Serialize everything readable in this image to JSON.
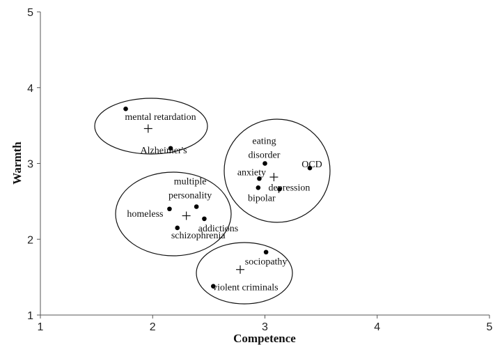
{
  "chart_data": {
    "type": "scatter",
    "xlabel": "Competence",
    "ylabel": "Warmth",
    "xlim": [
      1,
      5
    ],
    "ylim": [
      1,
      5
    ],
    "xticks": [
      "1",
      "2",
      "3",
      "4",
      "5"
    ],
    "yticks": [
      "1",
      "2",
      "3",
      "4",
      "5"
    ],
    "grid": false,
    "points": [
      {
        "label": "mental retardation",
        "x": 1.76,
        "y": 3.72
      },
      {
        "label": "Alzheimer's",
        "x": 2.16,
        "y": 3.2
      },
      {
        "label": "eating disorder",
        "x": 3.0,
        "y": 3.0
      },
      {
        "label": "anxiety",
        "x": 2.95,
        "y": 2.8
      },
      {
        "label": "OCD",
        "x": 3.4,
        "y": 2.94
      },
      {
        "label": "bipolar",
        "x": 2.94,
        "y": 2.68
      },
      {
        "label": "depression",
        "x": 3.13,
        "y": 2.66
      },
      {
        "label": "multiple personality",
        "x": 2.39,
        "y": 2.43
      },
      {
        "label": "homeless",
        "x": 2.15,
        "y": 2.4
      },
      {
        "label": "addictions",
        "x": 2.46,
        "y": 2.27
      },
      {
        "label": "schizophrenia",
        "x": 2.22,
        "y": 2.15
      },
      {
        "label": "sociopathy",
        "x": 3.01,
        "y": 1.83
      },
      {
        "label": "violent criminals",
        "x": 2.54,
        "y": 1.38
      }
    ],
    "cluster_centroids": [
      {
        "x": 1.96,
        "y": 3.46
      },
      {
        "x": 3.08,
        "y": 2.82
      },
      {
        "x": 2.3,
        "y": 2.31
      },
      {
        "x": 2.78,
        "y": 1.6
      }
    ]
  }
}
